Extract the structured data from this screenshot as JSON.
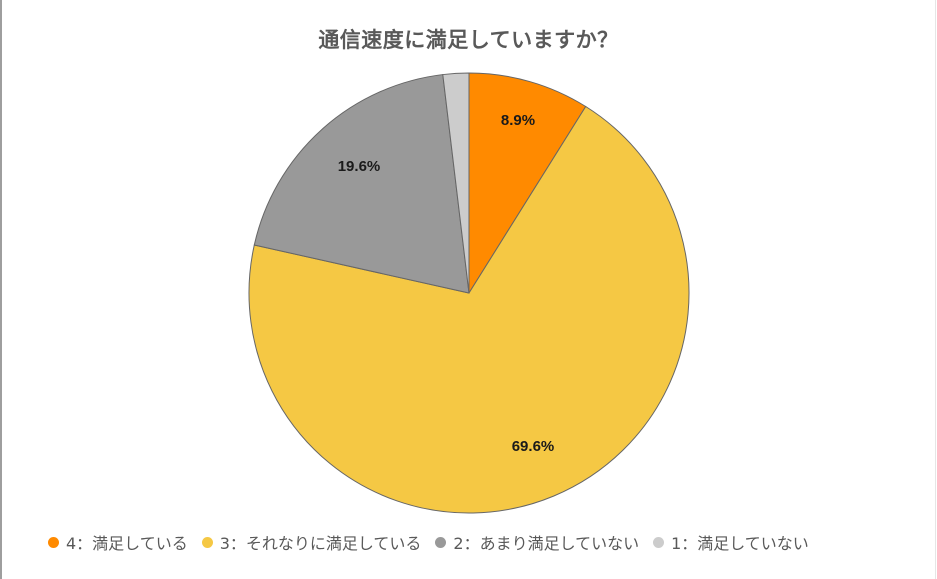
{
  "chart_data": {
    "type": "pie",
    "title": "通信速度に満足していますか？",
    "categories": [
      "4：満足している",
      "3：それなりに満足している",
      "2：あまり満足していない",
      "1：満足していない"
    ],
    "values": [
      8.9,
      69.6,
      19.6,
      1.9
    ],
    "labels": [
      "8.9%",
      "69.6%",
      "19.6%",
      ""
    ],
    "colors": [
      "#ff8a00",
      "#f5c844",
      "#999999",
      "#cccccc"
    ],
    "start_angle": "12 o'clock",
    "direction": "clockwise",
    "legend_position": "bottom"
  },
  "legend": {
    "items": [
      {
        "label": "4：満足している",
        "color": "#ff8a00"
      },
      {
        "label": "3：それなりに満足している",
        "color": "#f5c844"
      },
      {
        "label": "2：あまり満足していない",
        "color": "#999999"
      },
      {
        "label": "1：満足していない",
        "color": "#cccccc"
      }
    ]
  }
}
